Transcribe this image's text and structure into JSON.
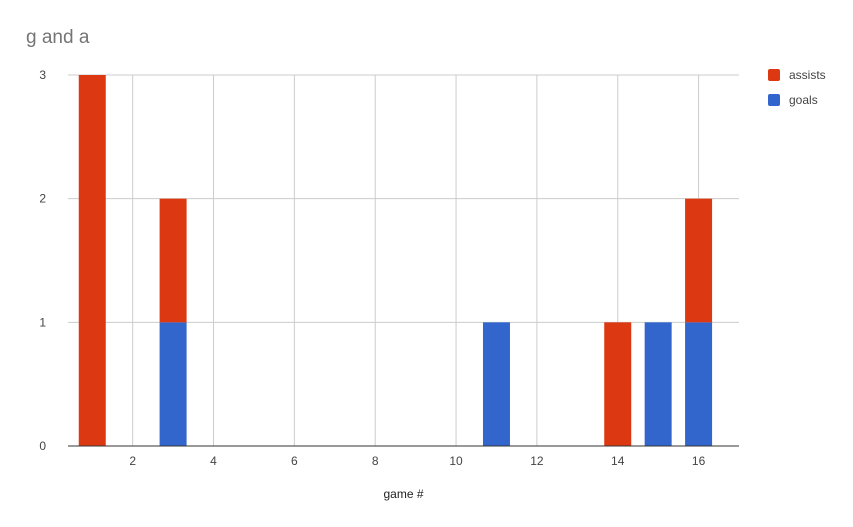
{
  "chart_data": {
    "type": "bar",
    "stacked": true,
    "title": "g and a",
    "xlabel": "game #",
    "ylabel": "",
    "x": [
      1,
      3,
      11,
      14,
      15,
      16
    ],
    "series": [
      {
        "name": "goals",
        "color": "#3366cc",
        "values": [
          0,
          1,
          1,
          0,
          1,
          1
        ]
      },
      {
        "name": "assists",
        "color": "#dc3912",
        "values": [
          3,
          1,
          0,
          1,
          0,
          1
        ]
      }
    ],
    "legend_order": [
      "assists",
      "goals"
    ],
    "xlim": [
      0.4,
      17.0
    ],
    "ylim": [
      0,
      3
    ],
    "xticks": [
      2,
      4,
      6,
      8,
      10,
      12,
      14,
      16
    ],
    "yticks": [
      0,
      1,
      2,
      3
    ],
    "grid": true,
    "legend_position": "right"
  }
}
